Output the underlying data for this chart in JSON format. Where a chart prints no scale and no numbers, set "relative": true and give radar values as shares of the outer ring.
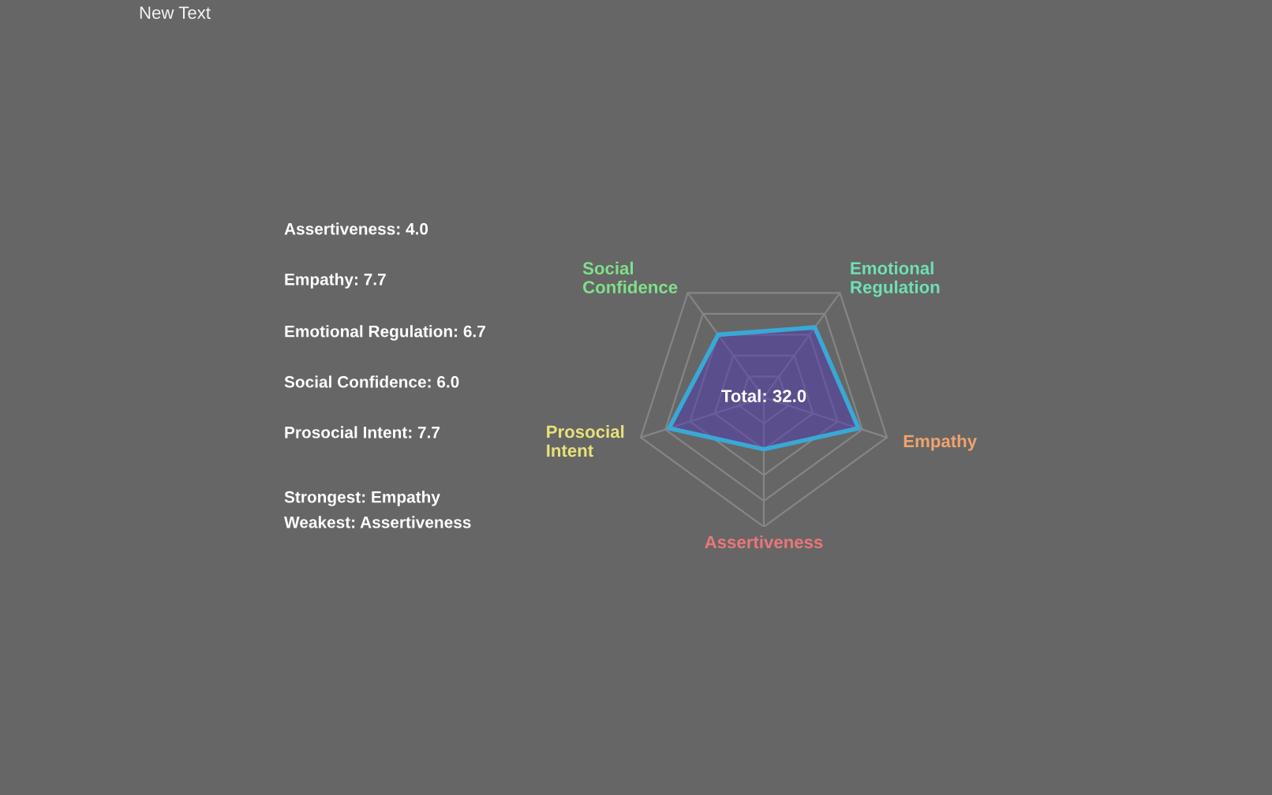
{
  "chart_data": {
    "type": "radar",
    "title": "New Text",
    "categories": [
      "Emotional\nRegulation",
      "Empathy",
      "Assertiveness",
      "Prosocial\nIntent",
      "Social\nConfidence"
    ],
    "colors": [
      "#6fe0b4",
      "#f0a46c",
      "#e87878",
      "#e8e27a",
      "#7fe08a"
    ],
    "series": [
      {
        "color": "#3aa8d4",
        "values": [
          0.67,
          0.77,
          0.4,
          0.77,
          0.6
        ]
      }
    ],
    "relative": true,
    "grid": true,
    "annotations": [
      "Total: 32.0",
      "Assertiveness: 4.0",
      "Empathy: 7.7",
      "Emotional Regulation: 6.7",
      "Social Confidence: 6.0",
      "Prosocial Intent: 7.7",
      "Strongest: Empathy",
      "Weakest: Assertiveness"
    ]
  }
}
